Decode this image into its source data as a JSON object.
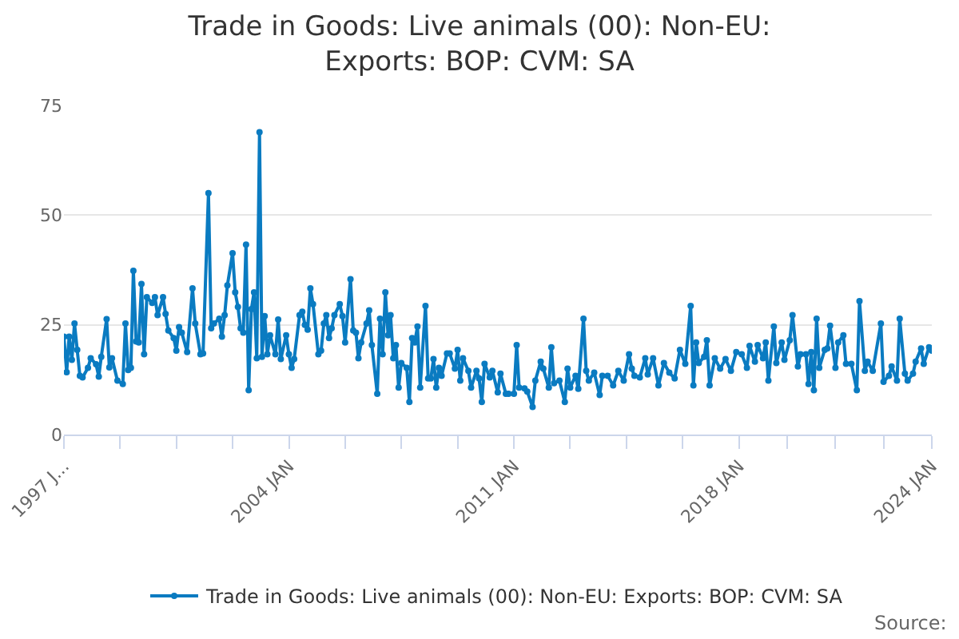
{
  "chart_data": {
    "type": "line",
    "title": "Trade in Goods: Live animals (00): Non-EU: Exports: BOP: CVM: SA",
    "annotations": [
      "Source:"
    ],
    "xlim": [
      "1997-01",
      "2024-01"
    ],
    "xticks": [
      {
        "value": "1997-01",
        "label": "1997 J..."
      },
      {
        "value": "1998-10",
        "label": null
      },
      {
        "value": "2000-07",
        "label": null
      },
      {
        "value": "2002-04",
        "label": null
      },
      {
        "value": "2004-01",
        "label": "2004 JAN"
      },
      {
        "value": "2005-10",
        "label": null
      },
      {
        "value": "2007-07",
        "label": null
      },
      {
        "value": "2009-04",
        "label": null
      },
      {
        "value": "2011-01",
        "label": "2011 JAN"
      },
      {
        "value": "2012-10",
        "label": null
      },
      {
        "value": "2014-07",
        "label": null
      },
      {
        "value": "2016-04",
        "label": null
      },
      {
        "value": "2018-01",
        "label": "2018 JAN"
      },
      {
        "value": "2019-07",
        "label": null
      },
      {
        "value": "2021-01",
        "label": null
      },
      {
        "value": "2022-07",
        "label": null
      },
      {
        "value": "2024-01",
        "label": "2024 JAN"
      }
    ],
    "ylim": [
      0,
      75
    ],
    "yticks": [
      0,
      25,
      50,
      75
    ],
    "grid": "y",
    "legend": "bottom",
    "marker": "circle",
    "line_style": "solid",
    "series": [
      {
        "name": "Trade in Goods: Live animals (00): Non-EU: Exports: BOP: CVM: SA",
        "color": "#0a7bc1",
        "x": [
          "1997-01",
          "1997-02",
          "1997-03",
          "1997-04",
          "1997-05",
          "1997-06",
          "1997-07",
          "1997-08",
          "1997-10",
          "1997-11",
          "1998-01",
          "1998-02",
          "1998-03",
          "1998-05",
          "1998-06",
          "1998-07",
          "1998-09",
          "1998-11",
          "1998-12",
          "1999-01",
          "1999-02",
          "1999-03",
          "1999-04",
          "1999-05",
          "1999-06",
          "1999-07",
          "1999-08",
          "1999-10",
          "1999-11",
          "1999-12",
          "2000-02",
          "2000-03",
          "2000-04",
          "2000-06",
          "2000-07",
          "2000-08",
          "2000-09",
          "2000-11",
          "2001-01",
          "2001-02",
          "2001-04",
          "2001-05",
          "2001-07",
          "2001-08",
          "2001-09",
          "2001-11",
          "2001-12",
          "2002-01",
          "2002-02",
          "2002-04",
          "2002-05",
          "2002-06",
          "2002-07",
          "2002-08",
          "2002-09",
          "2002-10",
          "2002-11",
          "2002-12",
          "2003-01",
          "2003-02",
          "2003-03",
          "2003-04",
          "2003-05",
          "2003-06",
          "2003-08",
          "2003-09",
          "2003-10",
          "2003-12",
          "2004-01",
          "2004-02",
          "2004-03",
          "2004-05",
          "2004-06",
          "2004-07",
          "2004-08",
          "2004-09",
          "2004-10",
          "2004-12",
          "2005-01",
          "2005-02",
          "2005-03",
          "2005-04",
          "2005-05",
          "2005-06",
          "2005-08",
          "2005-09",
          "2005-10",
          "2005-12",
          "2006-01",
          "2006-02",
          "2006-03",
          "2006-04",
          "2006-06",
          "2006-07",
          "2006-08",
          "2006-10",
          "2006-11",
          "2006-12",
          "2007-01",
          "2007-02",
          "2007-03",
          "2007-04",
          "2007-05",
          "2007-06",
          "2007-07",
          "2007-09",
          "2007-10",
          "2007-11",
          "2007-12",
          "2008-01",
          "2008-02",
          "2008-04",
          "2008-05",
          "2008-06",
          "2008-07",
          "2008-08",
          "2008-09",
          "2008-10",
          "2008-12",
          "2009-01",
          "2009-03",
          "2009-04",
          "2009-05",
          "2009-06",
          "2009-08",
          "2009-09",
          "2009-11",
          "2009-12",
          "2010-01",
          "2010-02",
          "2010-04",
          "2010-05",
          "2010-07",
          "2010-08",
          "2010-10",
          "2010-11",
          "2011-01",
          "2011-02",
          "2011-03",
          "2011-05",
          "2011-06",
          "2011-08",
          "2011-09",
          "2011-11",
          "2011-12",
          "2012-02",
          "2012-03",
          "2012-04",
          "2012-06",
          "2012-08",
          "2012-09",
          "2012-10",
          "2012-12",
          "2013-01",
          "2013-03",
          "2013-04",
          "2013-05",
          "2013-07",
          "2013-09",
          "2013-10",
          "2013-12",
          "2014-02",
          "2014-04",
          "2014-06",
          "2014-08",
          "2014-09",
          "2014-10",
          "2014-12",
          "2015-02",
          "2015-03",
          "2015-05",
          "2015-07",
          "2015-09",
          "2015-11",
          "2016-01",
          "2016-03",
          "2016-05",
          "2016-07",
          "2016-08",
          "2016-09",
          "2016-10",
          "2016-12",
          "2017-01",
          "2017-02",
          "2017-04",
          "2017-06",
          "2017-08",
          "2017-10",
          "2017-12",
          "2018-02",
          "2018-04",
          "2018-05",
          "2018-07",
          "2018-08",
          "2018-10",
          "2018-11",
          "2018-12",
          "2019-02",
          "2019-03",
          "2019-05",
          "2019-06",
          "2019-08",
          "2019-09",
          "2019-11",
          "2019-12",
          "2020-02",
          "2020-03",
          "2020-04",
          "2020-05",
          "2020-06",
          "2020-07",
          "2020-09",
          "2020-10",
          "2020-11",
          "2021-01",
          "2021-02",
          "2021-04",
          "2021-05",
          "2021-07",
          "2021-09",
          "2021-10",
          "2021-12",
          "2022-01",
          "2022-03",
          "2022-06",
          "2022-07",
          "2022-09",
          "2022-10",
          "2022-12",
          "2023-01",
          "2023-03",
          "2023-04",
          "2023-06",
          "2023-07",
          "2023-09",
          "2023-10",
          "2023-12",
          "2024-01"
        ],
        "values": [
          22.3,
          14.2,
          22.3,
          17,
          25.3,
          19.3,
          13.4,
          13,
          15.2,
          17.4,
          16,
          13.2,
          17.7,
          26.3,
          15.3,
          17.4,
          12.3,
          11.5,
          25.3,
          14.7,
          15.2,
          37.3,
          21.2,
          21,
          34.3,
          18.3,
          31.3,
          30,
          31.3,
          27.2,
          31.3,
          27.5,
          23.7,
          22,
          19.1,
          24.5,
          23.2,
          18.8,
          33.3,
          25.3,
          18.3,
          18.5,
          55,
          24.2,
          25.3,
          26.4,
          22.3,
          27.2,
          34,
          41.3,
          32.4,
          29.1,
          24.2,
          23.2,
          43.3,
          10.1,
          28.6,
          32.4,
          17.4,
          68.9,
          17.7,
          27,
          18.3,
          22.6,
          18.3,
          26.2,
          17.2,
          22.6,
          18.3,
          15.2,
          17.2,
          27.2,
          28,
          25,
          23.9,
          33.3,
          29.7,
          18.3,
          19.1,
          25.3,
          27.2,
          22,
          24.2,
          27.2,
          29.7,
          27,
          21,
          35.4,
          23.7,
          23.2,
          17.4,
          21,
          25.3,
          28.3,
          20.4,
          9.3,
          26.4,
          18.3,
          32.4,
          22.6,
          27.2,
          17.4,
          20.4,
          10.7,
          16.3,
          15.2,
          7.4,
          22,
          21,
          24.6,
          10.7,
          29.3,
          12.8,
          12.8,
          17.2,
          10.7,
          15.2,
          13.4,
          18.5,
          18.5,
          15,
          19.3,
          12.3,
          17.4,
          14.5,
          10.7,
          14.5,
          12.8,
          7.4,
          16.1,
          13,
          14.5,
          9.6,
          13.9,
          9.3,
          9.3,
          9.3,
          20.4,
          10.7,
          10.5,
          9.8,
          6.3,
          12.3,
          16.6,
          15,
          10.7,
          19.9,
          11.7,
          12.3,
          7.4,
          15,
          10.7,
          13.4,
          10.4,
          26.4,
          14.5,
          12.3,
          14.1,
          9,
          13.4,
          13.4,
          11.2,
          14.5,
          12.3,
          18.3,
          15,
          13.4,
          13,
          17.4,
          13.7,
          17.4,
          11.2,
          16.3,
          14.1,
          12.8,
          19.3,
          16.1,
          29.3,
          11.2,
          21,
          16.3,
          17.7,
          21.5,
          11.2,
          17.4,
          15,
          17.2,
          14.5,
          18.8,
          18.3,
          15.2,
          20.2,
          16.6,
          20.4,
          17.4,
          21,
          12.3,
          24.6,
          16.3,
          21,
          17,
          21.5,
          27.2,
          15.5,
          18.3,
          18.3,
          11.5,
          18.8,
          10.1,
          26.4,
          15.2,
          19.3,
          19.6,
          24.8,
          15.2,
          21,
          22.6,
          16.1,
          16.1,
          10.1,
          30.4,
          14.5,
          16.6,
          14.5,
          25.3,
          12,
          13.4,
          15.5,
          12.3,
          26.4,
          13.9,
          12.3,
          13.9,
          16.6,
          19.6,
          16.1,
          19.9,
          19.1
        ]
      }
    ]
  }
}
